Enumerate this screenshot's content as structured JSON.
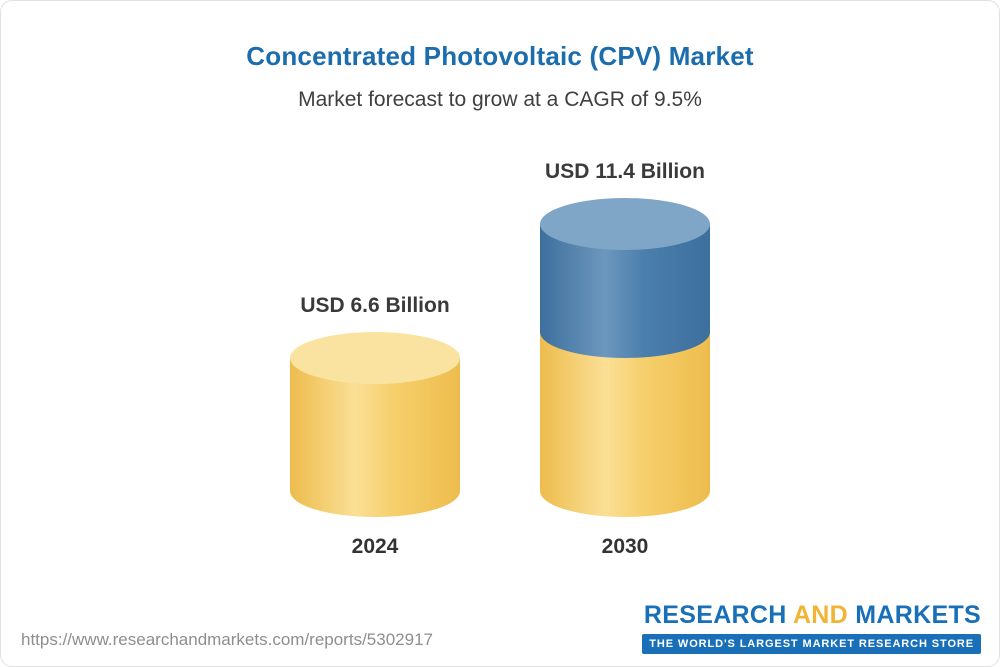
{
  "page": {
    "title": "Concentrated Photovoltaic (CPV) Market",
    "subtitle": "Market forecast to grow at a CAGR of 9.5%",
    "source_url": "https://www.researchandmarkets.com/reports/5302917"
  },
  "chart_data": {
    "type": "bar",
    "variant": "3d-cylinder",
    "title": "Concentrated Photovoltaic (CPV) Market",
    "subtitle": "Market forecast to grow at a CAGR of 9.5%",
    "categories": [
      "2024",
      "2030"
    ],
    "values": [
      6.6,
      11.4
    ],
    "labels": [
      "USD 6.6 Billion",
      "USD 11.4 Billion"
    ],
    "unit": "USD Billion",
    "cagr_percent": 9.5,
    "xlabel": "",
    "ylabel": "",
    "ylim": [
      0,
      12
    ],
    "grid": false,
    "legend": "none",
    "notes": "2030 cylinder shows the 2024 base value in yellow with incremental growth segment in blue stacked on top"
  },
  "logo": {
    "research": "RESEARCH",
    "and": "AND",
    "markets": "MARKETS",
    "tagline": "THE WORLD'S LARGEST MARKET RESEARCH STORE"
  },
  "colors": {
    "title_blue": "#1b6dad",
    "text_dark": "#3f3f3f",
    "yellow_body": "#f6cf6b",
    "yellow_body_dark": "#edbc4d",
    "yellow_body_light": "#fadf95",
    "yellow_cap": "#fae3a1",
    "blue_body": "#4a7eac",
    "blue_body_dark": "#3d6f9d",
    "blue_body_light": "#6d97bd",
    "blue_cap": "#7fa6c7",
    "logo_blue": "#1a70b8",
    "logo_gold": "#f1b434",
    "url_gray": "#8e8e8e"
  }
}
